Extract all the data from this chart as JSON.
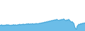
{
  "values": [
    30,
    28,
    32,
    26,
    30,
    27,
    31,
    28,
    33,
    29,
    32,
    28,
    30,
    27,
    31,
    29,
    33,
    28,
    32,
    30,
    29,
    33,
    31,
    35,
    30,
    34,
    32,
    36,
    31,
    35,
    33,
    37,
    34,
    38,
    33,
    37,
    35,
    36,
    38,
    34,
    37,
    35,
    39,
    36,
    38,
    37,
    40,
    38,
    42,
    39,
    44,
    41,
    46,
    43,
    48,
    45,
    50,
    47,
    52,
    50,
    54,
    52,
    56,
    54,
    58,
    55,
    60,
    57,
    55,
    53,
    58,
    55,
    60,
    57,
    62,
    59,
    55,
    52,
    58,
    54,
    60,
    55,
    50,
    45,
    48,
    43,
    38,
    20,
    12,
    8,
    25,
    30,
    35,
    32,
    38,
    35,
    40,
    37,
    42,
    39
  ],
  "line_color": "#3d9fd3",
  "fill_color": "#6bbde8",
  "background_color": "#ffffff",
  "ylim_min": 0,
  "ylim_max": 160
}
